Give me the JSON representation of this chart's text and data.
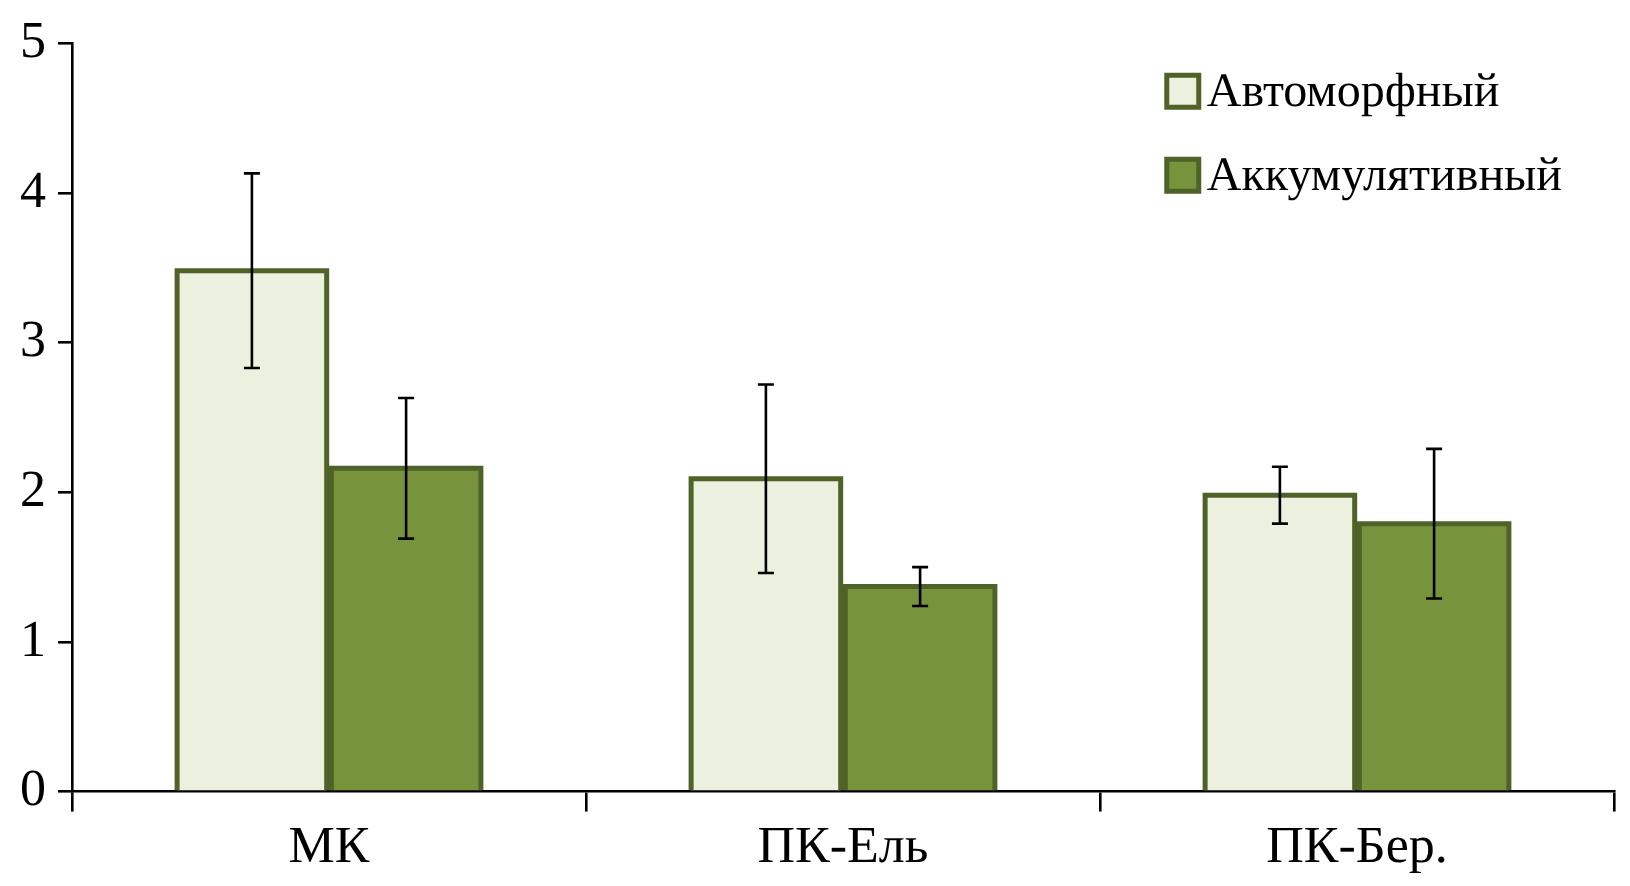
{
  "chart_data": {
    "type": "bar",
    "categories": [
      "МК",
      "ПК-Ель",
      "ПК-Бер."
    ],
    "series": [
      {
        "name": "Автоморфный",
        "color": "#ebf1de",
        "values": [
          3.48,
          2.09,
          1.98
        ],
        "errors": [
          0.65,
          0.63,
          0.19
        ]
      },
      {
        "name": "Аккумулятивный",
        "color": "#77933c",
        "values": [
          2.16,
          1.37,
          1.79
        ],
        "errors": [
          0.47,
          0.13,
          0.5
        ]
      }
    ],
    "ylim": [
      0,
      5
    ],
    "yticks": [
      0,
      1,
      2,
      3,
      4,
      5
    ],
    "grid": false,
    "legend": "top right"
  }
}
